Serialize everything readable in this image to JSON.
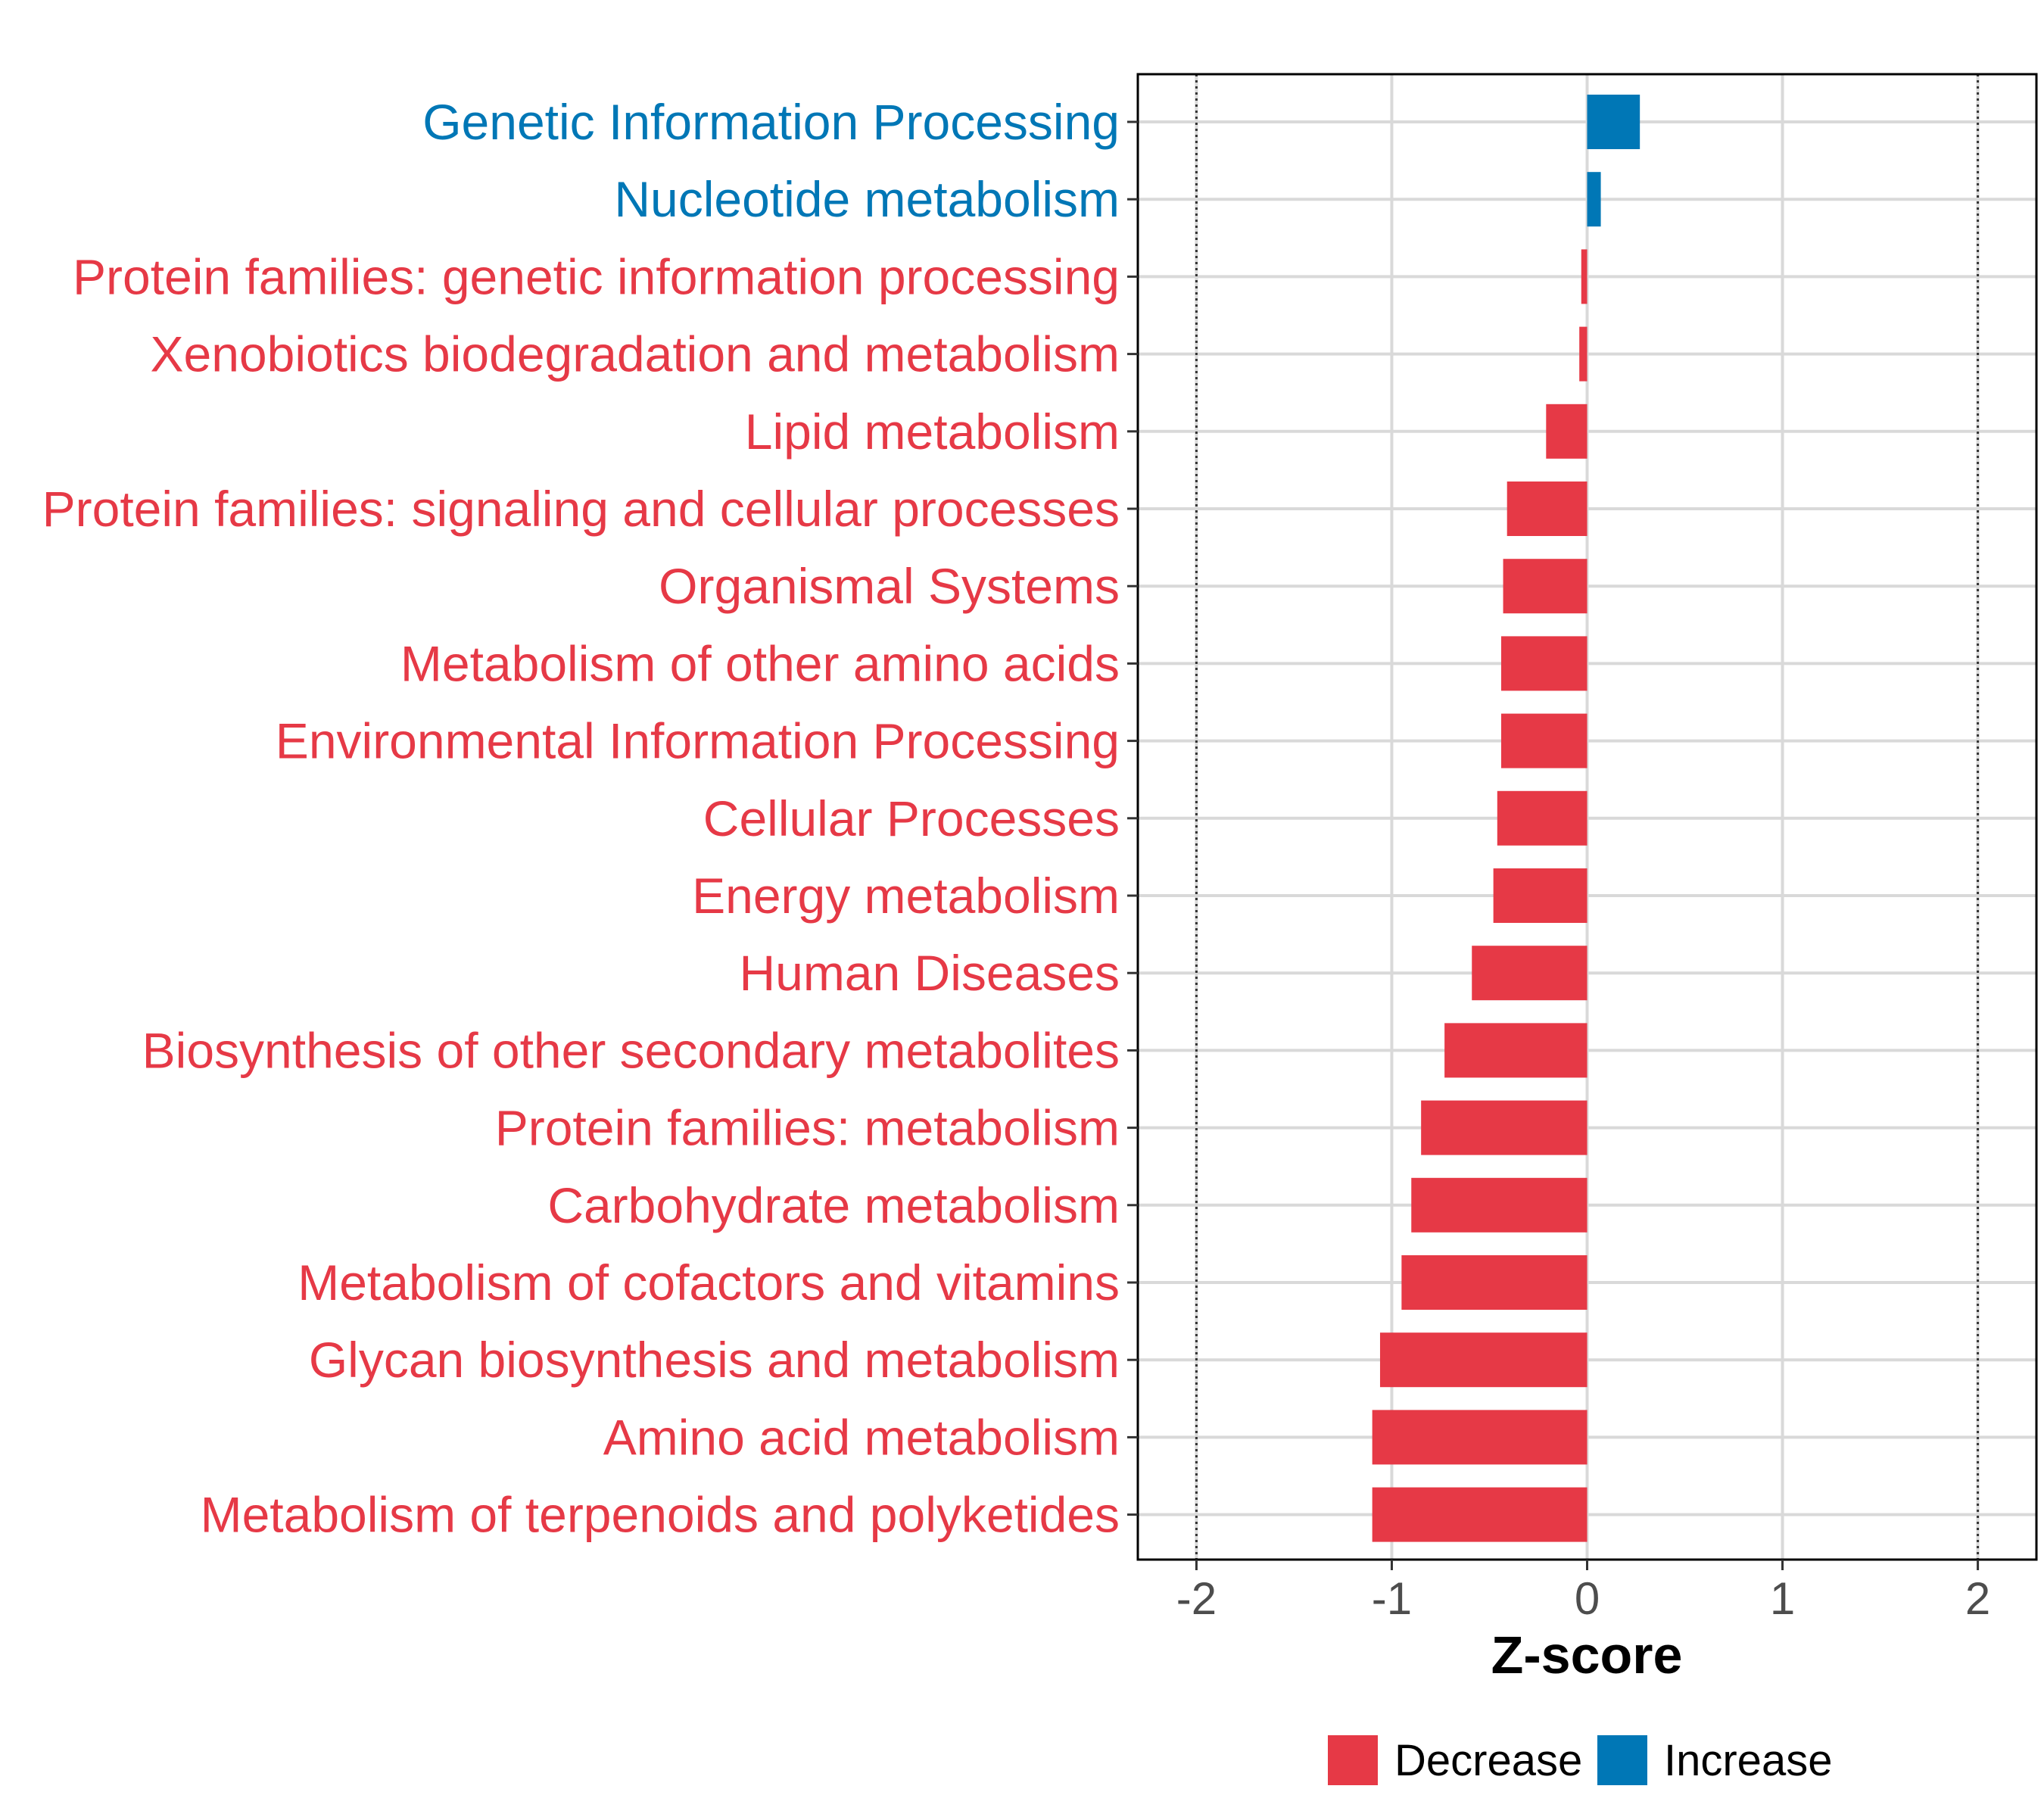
{
  "chart_data": {
    "type": "bar",
    "orientation": "horizontal",
    "xlabel": "Z-score",
    "ylabel": "",
    "xlim": [
      -2.3,
      2.3
    ],
    "x_ticks": [
      -2,
      -1,
      0,
      1,
      2
    ],
    "x_tick_labels": [
      "-2",
      "-1",
      "0",
      "1",
      "2"
    ],
    "reference_lines": [
      -2,
      2
    ],
    "grid": true,
    "legend": {
      "position": "bottom",
      "items": [
        {
          "label": "Decrease",
          "color": "#E63946"
        },
        {
          "label": "Increase",
          "color": "#0077B6"
        }
      ]
    },
    "bars": [
      {
        "category": "Genetic Information Processing",
        "value": 0.27,
        "group": "Increase"
      },
      {
        "category": "Nucleotide metabolism",
        "value": 0.07,
        "group": "Increase"
      },
      {
        "category": "Protein families: genetic information processing",
        "value": -0.03,
        "group": "Decrease"
      },
      {
        "category": "Xenobiotics biodegradation and metabolism",
        "value": -0.04,
        "group": "Decrease"
      },
      {
        "category": "Lipid metabolism",
        "value": -0.21,
        "group": "Decrease"
      },
      {
        "category": "Protein families: signaling and cellular processes",
        "value": -0.41,
        "group": "Decrease"
      },
      {
        "category": "Organismal Systems",
        "value": -0.43,
        "group": "Decrease"
      },
      {
        "category": "Metabolism of other amino acids",
        "value": -0.44,
        "group": "Decrease"
      },
      {
        "category": "Environmental Information Processing",
        "value": -0.44,
        "group": "Decrease"
      },
      {
        "category": "Cellular Processes",
        "value": -0.46,
        "group": "Decrease"
      },
      {
        "category": "Energy metabolism",
        "value": -0.48,
        "group": "Decrease"
      },
      {
        "category": "Human Diseases",
        "value": -0.59,
        "group": "Decrease"
      },
      {
        "category": "Biosynthesis of other secondary metabolites",
        "value": -0.73,
        "group": "Decrease"
      },
      {
        "category": "Protein families: metabolism",
        "value": -0.85,
        "group": "Decrease"
      },
      {
        "category": "Carbohydrate metabolism",
        "value": -0.9,
        "group": "Decrease"
      },
      {
        "category": "Metabolism of cofactors and vitamins",
        "value": -0.95,
        "group": "Decrease"
      },
      {
        "category": "Glycan biosynthesis and metabolism",
        "value": -1.06,
        "group": "Decrease"
      },
      {
        "category": "Amino acid metabolism",
        "value": -1.1,
        "group": "Decrease"
      },
      {
        "category": "Metabolism of terpenoids and polyketides",
        "value": -1.1,
        "group": "Decrease"
      }
    ]
  }
}
